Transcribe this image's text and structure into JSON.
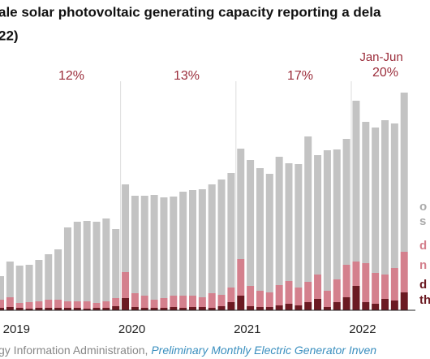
{
  "chart_data": {
    "type": "stacked_bar",
    "title_lines": [
      "ale solar photovoltaic generating capacity reporting a dela",
      "22)"
    ],
    "categories": [
      null,
      "2019",
      null,
      null,
      null,
      null,
      null,
      null,
      null,
      null,
      null,
      null,
      null,
      "2020",
      null,
      null,
      null,
      null,
      null,
      null,
      null,
      null,
      null,
      null,
      null,
      "2021",
      null,
      null,
      null,
      null,
      null,
      null,
      null,
      null,
      null,
      null,
      null,
      "2022",
      null,
      null,
      null,
      null,
      null
    ],
    "series": [
      {
        "name": [
          "d",
          "th"
        ],
        "color": "#6b1a22",
        "values": [
          3,
          4,
          3,
          2,
          3,
          3,
          3,
          3,
          3,
          2,
          3,
          3,
          5,
          15,
          4,
          3,
          3,
          3,
          4,
          3,
          4,
          4,
          3,
          5,
          10,
          18,
          5,
          4,
          4,
          6,
          8,
          6,
          10,
          14,
          4,
          10,
          16,
          30,
          10,
          8,
          14,
          12,
          22
        ]
      },
      {
        "name": [
          "d",
          "n"
        ],
        "color": "#d4808d",
        "values": [
          10,
          12,
          6,
          8,
          8,
          10,
          10,
          8,
          8,
          9,
          6,
          8,
          10,
          32,
          17,
          15,
          10,
          12,
          14,
          15,
          14,
          12,
          18,
          14,
          18,
          45,
          25,
          20,
          18,
          25,
          28,
          22,
          25,
          30,
          20,
          28,
          40,
          30,
          48,
          38,
          30,
          40,
          50
        ]
      },
      {
        "name": [
          "o",
          "s"
        ],
        "color": "#c3c3c3",
        "values": [
          29,
          44,
          46,
          46,
          51,
          56,
          62,
          91,
          98,
          99,
          100,
          102,
          85,
          108,
          120,
          123,
          129,
          124,
          122,
          128,
          130,
          133,
          134,
          142,
          141,
          136,
          155,
          151,
          146,
          158,
          145,
          152,
          179,
          147,
          173,
          160,
          155,
          198,
          174,
          179,
          190,
          178,
          196
        ]
      }
    ],
    "ylim": [
      0,
      282
    ],
    "annotations": [
      "12%",
      "13%",
      "17%",
      "Jan-Jun",
      "20%"
    ],
    "annotation_color": "#9b2d3b",
    "source": [
      "gy Information Administration, ",
      "Preliminary Monthly Electric Generator Inven"
    ]
  }
}
